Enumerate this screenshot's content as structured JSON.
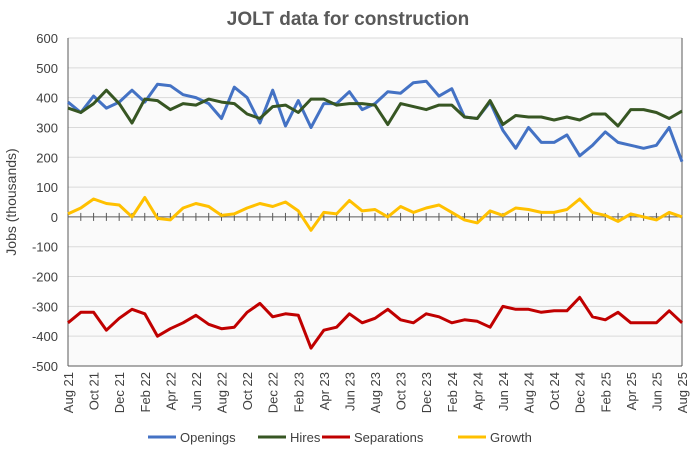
{
  "chart_data": {
    "type": "line",
    "title": "JOLT data for construction",
    "xlabel": "",
    "ylabel": "Jobs (thousands)",
    "ylim": [
      -500,
      600
    ],
    "yticks": [
      600,
      500,
      400,
      300,
      200,
      100,
      0,
      -100,
      -200,
      -300,
      -400,
      -500
    ],
    "grid": true,
    "legend_position": "bottom",
    "x": [
      "Aug 21",
      "Sep 21",
      "Oct 21",
      "Nov 21",
      "Dec 21",
      "Jan 22",
      "Feb 22",
      "Mar 22",
      "Apr 22",
      "May 22",
      "Jun 22",
      "Jul 22",
      "Aug 22",
      "Sep 22",
      "Oct 22",
      "Nov 22",
      "Dec 22",
      "Jan 23",
      "Feb 23",
      "Mar 23",
      "Apr 23",
      "May 23",
      "Jun 23",
      "Jul 23",
      "Aug 23",
      "Sep 23",
      "Oct 23",
      "Nov 23",
      "Dec 23",
      "Jan 24",
      "Feb 24",
      "Mar 24",
      "Apr 24",
      "May 24",
      "Jun 24",
      "Jul 24",
      "Aug 24",
      "Sep 24",
      "Oct 24",
      "Nov 24",
      "Dec 24",
      "Jan 25",
      "Feb 25",
      "Mar 25",
      "Apr 25",
      "May 25",
      "Jun 25",
      "Jul 25",
      "Aug 25"
    ],
    "xtick_labels": [
      "Aug 21",
      "Oct 21",
      "Dec 21",
      "Feb 22",
      "Apr 22",
      "Jun 22",
      "Aug 22",
      "Oct 22",
      "Dec 22",
      "Feb 23",
      "Apr 23",
      "Jun 23",
      "Aug 23",
      "Oct 23",
      "Dec 23",
      "Feb 24",
      "Apr 24",
      "Jun 24",
      "Aug 24",
      "Oct 24",
      "Dec 24",
      "Feb 25",
      "Apr 25",
      "Jun 25",
      "Aug 25"
    ],
    "series": [
      {
        "name": "Openings",
        "color": "#4472c4",
        "values": [
          385,
          350,
          405,
          365,
          385,
          425,
          385,
          445,
          440,
          410,
          400,
          380,
          330,
          435,
          400,
          315,
          425,
          305,
          390,
          300,
          380,
          380,
          420,
          360,
          380,
          420,
          415,
          450,
          455,
          405,
          430,
          335,
          330,
          385,
          290,
          230,
          300,
          250,
          250,
          275,
          205,
          240,
          285,
          250,
          240,
          230,
          240,
          300,
          185
        ]
      },
      {
        "name": "Hires",
        "color": "#375623",
        "values": [
          365,
          350,
          380,
          425,
          380,
          315,
          395,
          390,
          360,
          380,
          375,
          395,
          385,
          380,
          345,
          330,
          370,
          375,
          350,
          395,
          395,
          375,
          380,
          380,
          375,
          310,
          380,
          370,
          360,
          375,
          375,
          335,
          330,
          390,
          310,
          340,
          335,
          335,
          325,
          335,
          325,
          345,
          345,
          305,
          360,
          360,
          350,
          330,
          355
        ]
      },
      {
        "name": "Separations",
        "color": "#c00000",
        "values": [
          -355,
          -320,
          -320,
          -380,
          -340,
          -310,
          -325,
          -400,
          -375,
          -355,
          -330,
          -360,
          -375,
          -370,
          -320,
          -290,
          -335,
          -325,
          -330,
          -440,
          -380,
          -370,
          -325,
          -355,
          -340,
          -310,
          -345,
          -355,
          -325,
          -335,
          -355,
          -345,
          -350,
          -370,
          -300,
          -310,
          -310,
          -320,
          -315,
          -315,
          -270,
          -335,
          -345,
          -320,
          -355,
          -355,
          -355,
          -315,
          -355
        ]
      },
      {
        "name": "Growth",
        "color": "#ffc000",
        "values": [
          10,
          30,
          60,
          45,
          40,
          0,
          65,
          -5,
          -10,
          30,
          45,
          35,
          5,
          10,
          30,
          45,
          35,
          50,
          20,
          -45,
          15,
          10,
          55,
          20,
          25,
          0,
          35,
          15,
          30,
          40,
          15,
          -10,
          -20,
          20,
          5,
          30,
          25,
          15,
          15,
          25,
          60,
          15,
          5,
          -15,
          10,
          0,
          -10,
          15,
          0
        ]
      }
    ]
  }
}
